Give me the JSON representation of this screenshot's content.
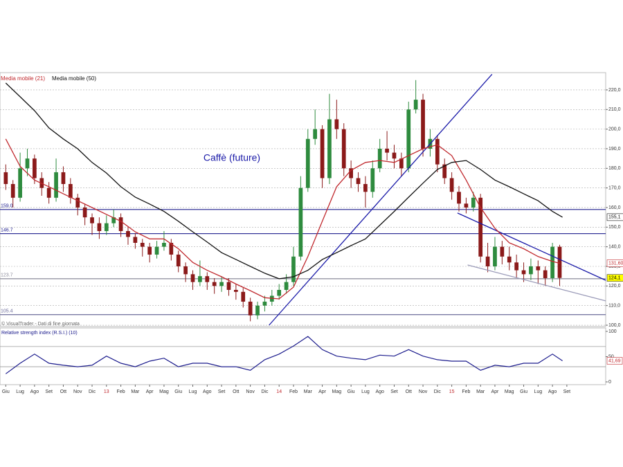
{
  "chart_data": [
    {
      "type": "candlestick",
      "title": "Caffè (future)",
      "title_color": "#1a1aa8",
      "source": "© VisualTrader - Dati di fine giornata",
      "up_color": "#2e8b3e",
      "down_color": "#8b1a1a",
      "last_label": "124,1",
      "last_label_bg": "#ffff00",
      "xlim": [
        -0.4,
        41.7
      ],
      "ylim": [
        99.3,
        228.8
      ],
      "yticks": [
        {
          "value": 100,
          "label": "100,0"
        },
        {
          "value": 110,
          "label": "110,0"
        },
        {
          "value": 120,
          "label": "120,0"
        },
        {
          "value": 130,
          "label": "130,0"
        },
        {
          "value": 140,
          "label": "140,0"
        },
        {
          "value": 150,
          "label": "150,0"
        },
        {
          "value": 160,
          "label": "160,0"
        },
        {
          "value": 170,
          "label": "170,0"
        },
        {
          "value": 180,
          "label": "180,0"
        },
        {
          "value": 190,
          "label": "190,0"
        },
        {
          "value": 200,
          "label": "200,0"
        },
        {
          "value": 210,
          "label": "210,0"
        },
        {
          "value": 220,
          "label": "220,0"
        }
      ],
      "grid": true,
      "x": [
        0,
        0.5,
        1,
        1.5,
        2,
        2.5,
        3,
        3.5,
        4,
        4.5,
        5,
        5.5,
        6,
        6.5,
        7,
        7.5,
        8,
        8.5,
        9,
        9.5,
        10,
        10.5,
        11,
        11.5,
        12,
        12.5,
        13,
        13.5,
        14,
        14.5,
        15,
        15.5,
        16,
        16.5,
        17,
        17.5,
        18,
        18.5,
        19,
        19.5,
        20,
        20.5,
        21,
        21.5,
        22,
        22.5,
        23,
        23.5,
        24,
        24.5,
        25,
        25.5,
        26,
        26.5,
        27,
        27.5,
        28,
        28.5,
        29,
        29.5,
        30,
        30.5,
        31,
        31.5,
        32,
        32.5,
        33,
        33.5,
        34,
        34.5,
        35,
        35.5,
        36,
        36.5,
        37,
        37.5,
        38,
        38.5
      ],
      "open": [
        178,
        172,
        165,
        180,
        185,
        175,
        170,
        165,
        178,
        172,
        165,
        160,
        155,
        152,
        148,
        152,
        155,
        148,
        145,
        142,
        140,
        136,
        140,
        142,
        136,
        130,
        126,
        122,
        125,
        122,
        120,
        122,
        118,
        117,
        112,
        105,
        110,
        112,
        115,
        118,
        122,
        135,
        170,
        195,
        200,
        175,
        205,
        200,
        180,
        175,
        172,
        168,
        180,
        190,
        188,
        185,
        180,
        210,
        215,
        190,
        195,
        182,
        175,
        168,
        162,
        160,
        165,
        135,
        130,
        140,
        135,
        132,
        128,
        126,
        130,
        128,
        124,
        140
      ],
      "high": [
        182,
        174,
        188,
        190,
        187,
        178,
        173,
        185,
        181,
        175,
        167,
        162,
        157,
        155,
        156,
        159,
        157,
        150,
        147,
        144,
        142,
        143,
        148,
        144,
        138,
        132,
        128,
        133,
        127,
        124,
        125,
        124,
        121,
        119,
        114,
        112,
        115,
        118,
        121,
        126,
        140,
        176,
        200,
        210,
        202,
        218,
        215,
        203,
        184,
        178,
        176,
        184,
        195,
        199,
        192,
        188,
        214,
        225,
        218,
        200,
        197,
        185,
        178,
        171,
        165,
        168,
        167,
        142,
        145,
        143,
        140,
        136,
        132,
        134,
        133,
        130,
        142,
        141
      ],
      "low": [
        169,
        160,
        163,
        176,
        172,
        166,
        162,
        163,
        168,
        162,
        156,
        151,
        146,
        144,
        146,
        150,
        145,
        141,
        139,
        135,
        132,
        134,
        138,
        133,
        127,
        122,
        118,
        120,
        118,
        116,
        117,
        115,
        113,
        109,
        102,
        103,
        107,
        110,
        113,
        116,
        120,
        133,
        168,
        192,
        170,
        172,
        195,
        176,
        170,
        168,
        160,
        165,
        178,
        184,
        180,
        176,
        178,
        208,
        186,
        186,
        178,
        172,
        164,
        158,
        157,
        158,
        132,
        127,
        128,
        131,
        128,
        124,
        122,
        123,
        121,
        120,
        122,
        120
      ],
      "close": [
        172,
        165,
        180,
        185,
        175,
        170,
        165,
        178,
        172,
        165,
        160,
        155,
        152,
        148,
        152,
        155,
        148,
        145,
        142,
        140,
        136,
        140,
        142,
        136,
        130,
        126,
        122,
        125,
        122,
        120,
        122,
        118,
        117,
        112,
        105,
        110,
        112,
        115,
        118,
        122,
        135,
        170,
        195,
        200,
        175,
        205,
        200,
        180,
        175,
        172,
        168,
        180,
        190,
        188,
        185,
        180,
        210,
        215,
        190,
        195,
        182,
        175,
        168,
        162,
        160,
        165,
        135,
        130,
        140,
        135,
        132,
        128,
        126,
        130,
        128,
        124,
        140,
        124.1
      ],
      "series": [
        {
          "name": "Media mobile (21)",
          "color": "#c0282d",
          "last_label": "131,60",
          "x": [
            0,
            1,
            2,
            3,
            4,
            5,
            6,
            7,
            8,
            9,
            10,
            11,
            12,
            13,
            14,
            15,
            16,
            17,
            18,
            19,
            20,
            21,
            22,
            23,
            24,
            25,
            26,
            27,
            28,
            29,
            30,
            31,
            32,
            33,
            34,
            35,
            36,
            37,
            38,
            38.5
          ],
          "values": [
            195,
            181,
            174,
            170.6,
            167,
            163.5,
            160,
            156.5,
            153,
            147.6,
            144,
            144,
            139,
            132,
            128,
            124.7,
            121,
            117.6,
            114,
            113.4,
            119.4,
            135,
            153,
            170.6,
            179,
            183,
            184,
            183,
            186.5,
            190,
            192,
            186.5,
            174,
            160,
            149.4,
            142,
            139,
            135,
            132.5,
            131.6
          ]
        },
        {
          "name": "Media mobile (50)",
          "color": "#111111",
          "last_label": "155,1",
          "x": [
            0,
            1,
            2,
            3,
            4,
            5,
            6,
            7,
            8,
            9,
            10,
            11,
            12,
            13,
            14,
            15,
            16,
            17,
            18,
            19,
            20,
            21,
            22,
            23,
            24,
            25,
            26,
            27,
            28,
            29,
            30,
            31,
            32,
            33,
            34,
            35,
            36,
            37,
            38,
            38.7
          ],
          "values": [
            223.5,
            216.5,
            209.4,
            200.6,
            195,
            190,
            183,
            177.6,
            170.6,
            165.3,
            161.8,
            158,
            153,
            147.6,
            142.4,
            137,
            133.5,
            130,
            126.5,
            123.7,
            124.7,
            128,
            133.5,
            137,
            140.6,
            144,
            151,
            158,
            165.3,
            172.4,
            179.4,
            183,
            184,
            179.4,
            174,
            170.6,
            167,
            163.5,
            158,
            155.1
          ]
        }
      ],
      "levels": [
        {
          "value": 159.0,
          "label": "159.0",
          "color": "#1a1a8c"
        },
        {
          "value": 146.7,
          "label": "146.7",
          "color": "#1a1a8c"
        },
        {
          "value": 123.7,
          "label": "123.7",
          "color": "#8a8a9a"
        },
        {
          "value": 105.4,
          "label": "105.4",
          "color": "#6a6a9a"
        }
      ],
      "trendlines": [
        {
          "x": [
            18.3,
            33.8
          ],
          "y": [
            100,
            228
          ],
          "color": "#1a1aa8"
        },
        {
          "x": [
            31.4,
            41.7
          ],
          "y": [
            157.2,
            122.9
          ],
          "color": "#1a1aa8"
        },
        {
          "x": [
            32.1,
            41.7
          ],
          "y": [
            130.7,
            112.4
          ],
          "color": "#9a9ab8"
        }
      ]
    },
    {
      "type": "line",
      "title": "Relative strength index (R.S.I.) (10)",
      "xlim": [
        -0.4,
        41.7
      ],
      "ylim": [
        -5.5,
        106.8
      ],
      "yticks": [
        0,
        50,
        100
      ],
      "levels": [
        30,
        70
      ],
      "xticks": [
        {
          "value": 0,
          "label": "Giu"
        },
        {
          "value": 1,
          "label": "Lug"
        },
        {
          "value": 2,
          "label": "Ago"
        },
        {
          "value": 3,
          "label": "Set"
        },
        {
          "value": 4,
          "label": "Ott"
        },
        {
          "value": 5,
          "label": "Nov"
        },
        {
          "value": 6,
          "label": "Dic"
        },
        {
          "value": 7,
          "label": "13"
        },
        {
          "value": 8,
          "label": "Feb"
        },
        {
          "value": 9,
          "label": "Mar"
        },
        {
          "value": 10,
          "label": "Apr"
        },
        {
          "value": 11,
          "label": "Mag"
        },
        {
          "value": 12,
          "label": "Giu"
        },
        {
          "value": 13,
          "label": "Lug"
        },
        {
          "value": 14,
          "label": "Ago"
        },
        {
          "value": 15,
          "label": "Set"
        },
        {
          "value": 16,
          "label": "Ott"
        },
        {
          "value": 17,
          "label": "Nov"
        },
        {
          "value": 18,
          "label": "Dic"
        },
        {
          "value": 19,
          "label": "14"
        },
        {
          "value": 20,
          "label": "Feb"
        },
        {
          "value": 21,
          "label": "Mar"
        },
        {
          "value": 22,
          "label": "Apr"
        },
        {
          "value": 23,
          "label": "Mag"
        },
        {
          "value": 24,
          "label": "Giu"
        },
        {
          "value": 25,
          "label": "Lug"
        },
        {
          "value": 26,
          "label": "Ago"
        },
        {
          "value": 27,
          "label": "Set"
        },
        {
          "value": 28,
          "label": "Ott"
        },
        {
          "value": 29,
          "label": "Nov"
        },
        {
          "value": 30,
          "label": "Dic"
        },
        {
          "value": 31,
          "label": "15"
        },
        {
          "value": 32,
          "label": "Feb"
        },
        {
          "value": 33,
          "label": "Mar"
        },
        {
          "value": 34,
          "label": "Apr"
        },
        {
          "value": 35,
          "label": "Mag"
        },
        {
          "value": 36,
          "label": "Giu"
        },
        {
          "value": 37,
          "label": "Lug"
        },
        {
          "value": 38,
          "label": "Ago"
        },
        {
          "value": 39,
          "label": "Set"
        }
      ],
      "highlight_ticks": [
        7,
        19,
        31
      ],
      "highlight_color": "#c0282d",
      "series": [
        {
          "color": "#1a1a8c",
          "last_label": "41,69",
          "x": [
            0,
            1,
            2,
            3,
            4,
            5,
            6,
            7,
            8,
            9,
            10,
            11,
            12,
            13,
            14,
            15,
            16,
            17,
            18,
            19,
            20,
            21,
            22,
            23,
            24,
            25,
            26,
            27,
            28,
            29,
            30,
            31,
            32,
            33,
            34,
            35,
            36,
            37,
            38,
            38.7
          ],
          "values": [
            16,
            37,
            55,
            37,
            33,
            30,
            33,
            51,
            37,
            30,
            41,
            47,
            30,
            37,
            37,
            30,
            30,
            23,
            44,
            55,
            71,
            90,
            64,
            51,
            47,
            44,
            53,
            51,
            64,
            51,
            44,
            41,
            41,
            23,
            33,
            30,
            37,
            37,
            55,
            41.69
          ]
        }
      ]
    }
  ]
}
